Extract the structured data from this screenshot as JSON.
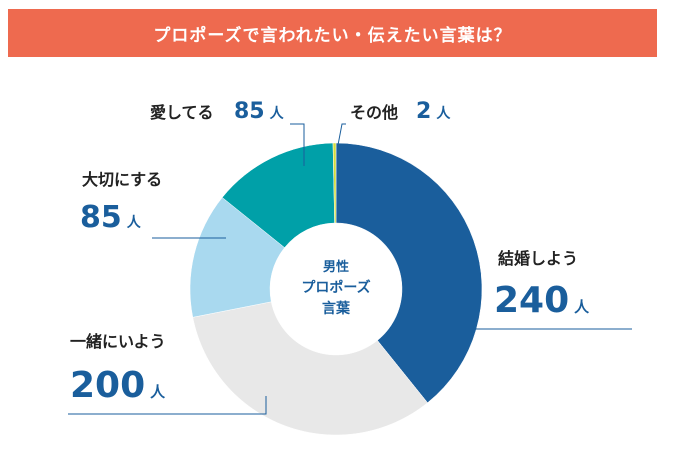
{
  "header": {
    "title": "プロポーズで言われたい・伝えたい言葉は？"
  },
  "center_label": {
    "line1": "男性",
    "line2": "プロポーズ",
    "line3": "言葉"
  },
  "chart_data": {
    "type": "pie",
    "title": "プロポーズで言われたい・伝えたい言葉は？",
    "unit": "人",
    "categories": [
      "結婚しよう",
      "一緒にいよう",
      "大切にする",
      "愛してる",
      "その他"
    ],
    "values": [
      240,
      200,
      85,
      85,
      2
    ],
    "colors": [
      "#1a5e9c",
      "#e8e8e8",
      "#a9d9ef",
      "#00a0a8",
      "#d4dc3c"
    ],
    "donut": true
  }
}
